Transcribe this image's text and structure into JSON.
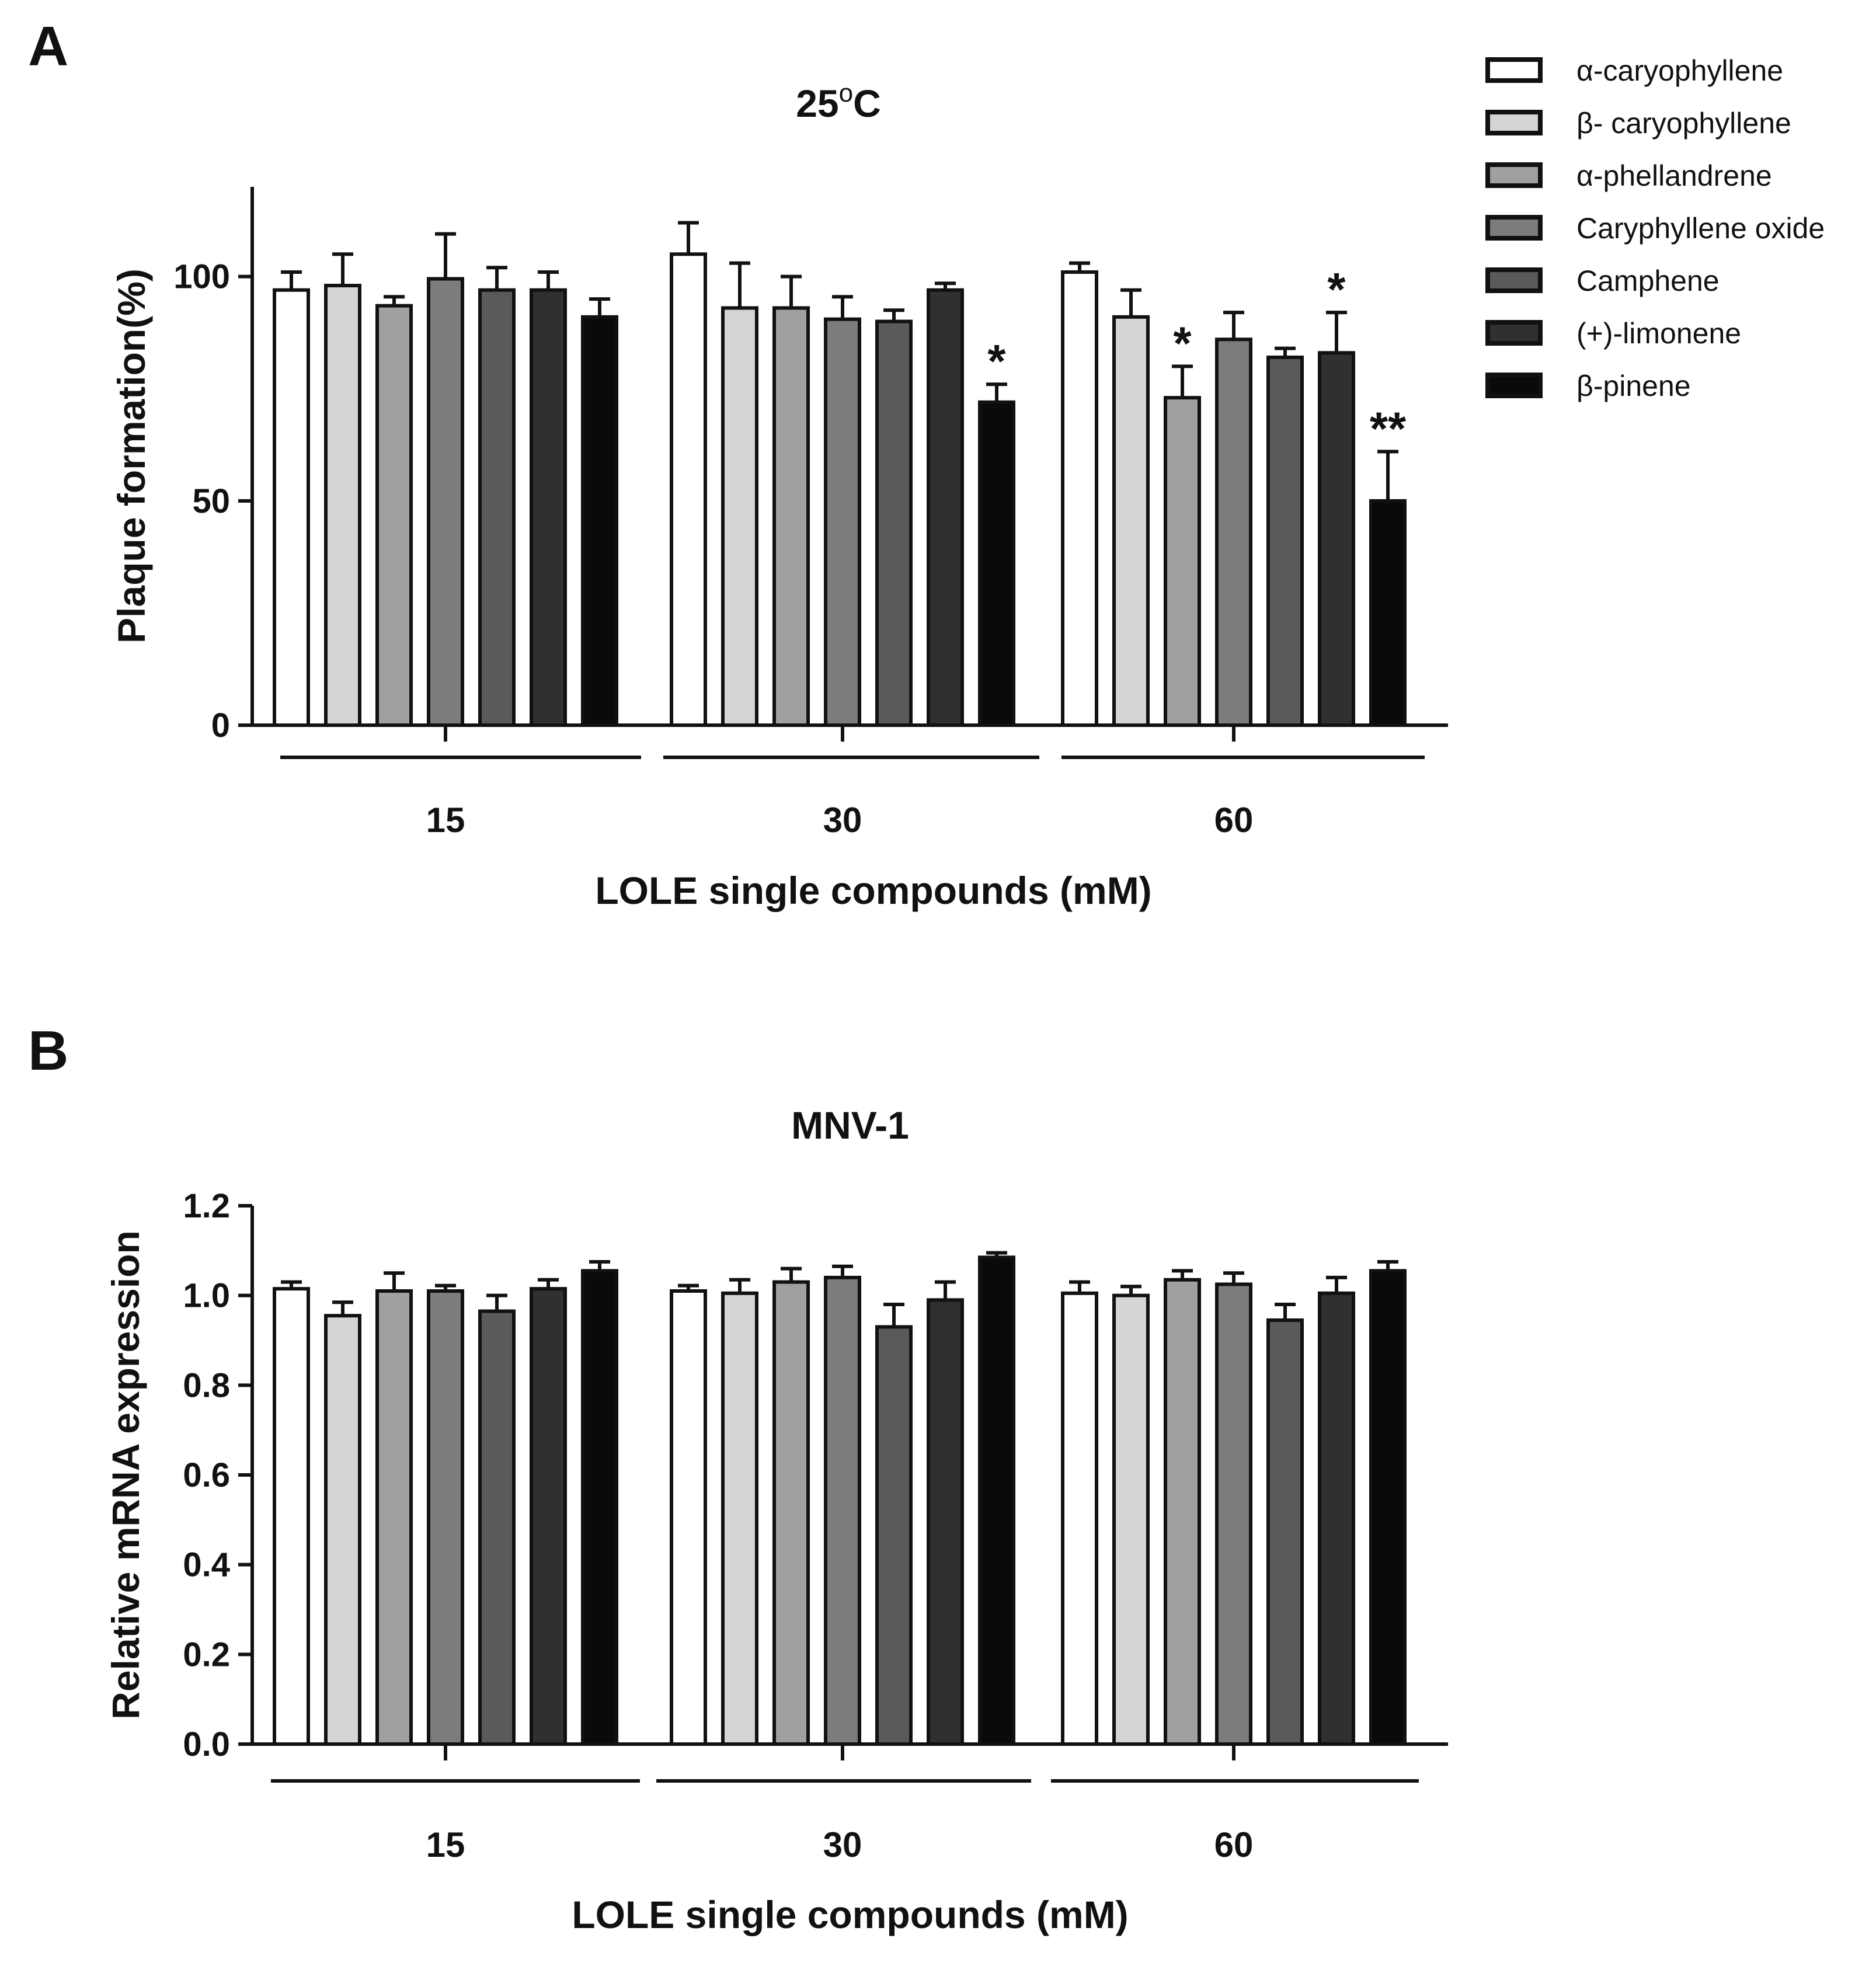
{
  "legend": {
    "items": [
      {
        "label": "α-caryophyllene",
        "color": "#ffffff"
      },
      {
        "label": "β- caryophyllene",
        "color": "#d4d4d4"
      },
      {
        "label": "α-phellandrene",
        "color": "#a0a0a0"
      },
      {
        "label": "Caryphyllene oxide",
        "color": "#7c7c7c"
      },
      {
        "label": "Camphene",
        "color": "#5a5a5a"
      },
      {
        "label": "(+)-limonene",
        "color": "#303030"
      },
      {
        "label": "β-pinene",
        "color": "#0a0a0a"
      }
    ]
  },
  "chart_data": [
    {
      "panel_label": "A",
      "type": "bar",
      "title": "25°C",
      "title_main": "25",
      "title_sup": "o",
      "title_end": "C",
      "xlabel": "LOLE single compounds (mM)",
      "ylabel": "Plaque formation(%)",
      "ylim": [
        0,
        120
      ],
      "yticks": [
        0,
        50,
        100
      ],
      "ytick_labels": [
        "0",
        "50",
        "100"
      ],
      "categories": [
        "15",
        "30",
        "60"
      ],
      "series": [
        {
          "name": "α-caryophyllene",
          "values": [
            97,
            105,
            101
          ],
          "errors": [
            4,
            7,
            2
          ]
        },
        {
          "name": "β- caryophyllene",
          "values": [
            98,
            93,
            91
          ],
          "errors": [
            7,
            10,
            6
          ]
        },
        {
          "name": "α-phellandrene",
          "values": [
            93.5,
            93,
            73
          ],
          "errors": [
            2,
            7,
            7
          ]
        },
        {
          "name": "Caryphyllene oxide",
          "values": [
            99.5,
            90.5,
            86
          ],
          "errors": [
            10,
            5,
            6
          ]
        },
        {
          "name": "Camphene",
          "values": [
            97,
            90,
            82
          ],
          "errors": [
            5,
            2.5,
            2
          ]
        },
        {
          "name": "(+)-limonene",
          "values": [
            97,
            97,
            83
          ],
          "errors": [
            4,
            1.5,
            9
          ]
        },
        {
          "name": "β-pinene",
          "values": [
            91,
            72,
            50
          ],
          "errors": [
            4,
            4,
            11
          ]
        }
      ],
      "annotations": [
        {
          "category": "30",
          "series": "β-pinene",
          "text": "*"
        },
        {
          "category": "60",
          "series": "α-phellandrene",
          "text": "*"
        },
        {
          "category": "60",
          "series": "(+)-limonene",
          "text": "*"
        },
        {
          "category": "60",
          "series": "β-pinene",
          "text": "**"
        }
      ]
    },
    {
      "panel_label": "B",
      "type": "bar",
      "title": "MNV-1",
      "xlabel": "LOLE single compounds  (mM)",
      "ylabel": "Relative mRNA expression",
      "ylim": [
        0,
        1.2
      ],
      "yticks": [
        0,
        0.2,
        0.4,
        0.6,
        0.8,
        1.0,
        1.2
      ],
      "ytick_labels": [
        "0.0",
        "0.2",
        "0.4",
        "0.6",
        "0.8",
        "1.0",
        "1.2"
      ],
      "categories": [
        "15",
        "30",
        "60"
      ],
      "series": [
        {
          "name": "α-caryophyllene",
          "values": [
            1.015,
            1.01,
            1.005
          ],
          "errors": [
            0.015,
            0.012,
            0.025
          ]
        },
        {
          "name": "β- caryophyllene",
          "values": [
            0.955,
            1.005,
            1.0
          ],
          "errors": [
            0.03,
            0.03,
            0.02
          ]
        },
        {
          "name": "α-phellandrene",
          "values": [
            1.01,
            1.03,
            1.035
          ],
          "errors": [
            0.04,
            0.03,
            0.02
          ]
        },
        {
          "name": "Caryphyllene oxide",
          "values": [
            1.01,
            1.04,
            1.025
          ],
          "errors": [
            0.012,
            0.025,
            0.025
          ]
        },
        {
          "name": "Camphene",
          "values": [
            0.965,
            0.93,
            0.945
          ],
          "errors": [
            0.035,
            0.05,
            0.035
          ]
        },
        {
          "name": "(+)-limonene",
          "values": [
            1.015,
            0.99,
            1.005
          ],
          "errors": [
            0.02,
            0.04,
            0.035
          ]
        },
        {
          "name": "β-pinene",
          "values": [
            1.055,
            1.085,
            1.055
          ],
          "errors": [
            0.02,
            0.01,
            0.02
          ]
        }
      ],
      "annotations": []
    }
  ]
}
